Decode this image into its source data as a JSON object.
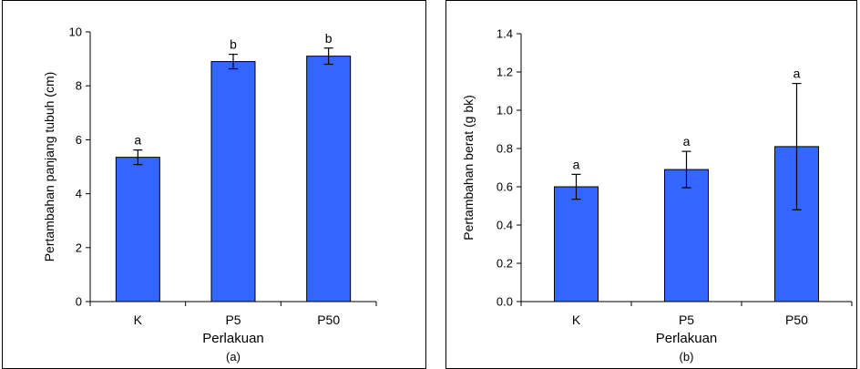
{
  "chart_data": [
    {
      "type": "bar",
      "categories": [
        "K",
        "P5",
        "P50"
      ],
      "values": [
        5.35,
        8.9,
        9.1
      ],
      "errors": [
        0.27,
        0.27,
        0.3
      ],
      "bar_labels": [
        "a",
        "b",
        "b"
      ],
      "xlabel": "Perlakuan",
      "ylabel": "Pertambahan panjang tubuh (cm)",
      "caption": "(a)",
      "ylim": [
        0,
        10
      ],
      "yticks": [
        "0",
        "2",
        "4",
        "6",
        "8",
        "10"
      ],
      "bar_color": "#3366ff",
      "grid": false
    },
    {
      "type": "bar",
      "categories": [
        "K",
        "P5",
        "P50"
      ],
      "values": [
        0.6,
        0.69,
        0.81
      ],
      "errors": [
        0.065,
        0.095,
        0.33
      ],
      "bar_labels": [
        "a",
        "a",
        "a"
      ],
      "xlabel": "Perlakuan",
      "ylabel": "Pertambahan berat (g bk)",
      "caption": "(b)",
      "ylim": [
        0,
        1.4
      ],
      "yticks": [
        "0.0",
        "0.2",
        "0.4",
        "0.6",
        "0.8",
        "1.0",
        "1.2",
        "1.4"
      ],
      "bar_color": "#3366ff",
      "grid": false
    }
  ]
}
